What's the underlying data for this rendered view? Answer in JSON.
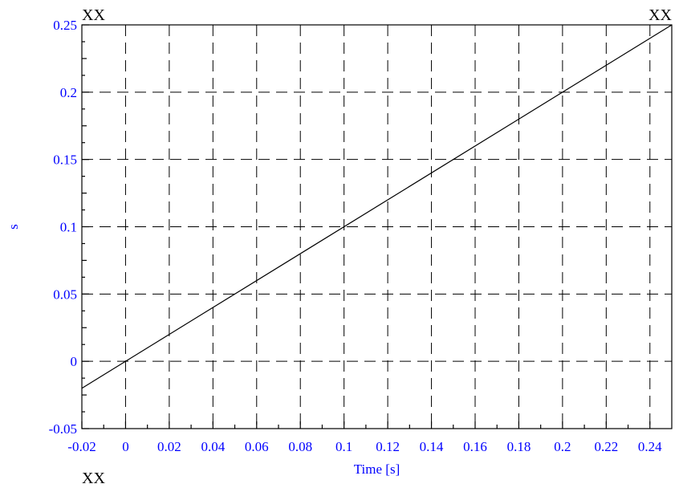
{
  "chart_data": {
    "type": "line",
    "xlabel": "Time [s]",
    "ylabel": "s",
    "xlim": [
      -0.02,
      0.25
    ],
    "ylim": [
      -0.05,
      0.25
    ],
    "x_ticks": [
      -0.02,
      0,
      0.02,
      0.04,
      0.06,
      0.08,
      0.1,
      0.12,
      0.14,
      0.16,
      0.18,
      0.2,
      0.22,
      0.24
    ],
    "x_tick_labels": [
      "-0.02",
      "0",
      "0.02",
      "0.04",
      "0.06",
      "0.08",
      "0.1",
      "0.12",
      "0.14",
      "0.16",
      "0.18",
      "0.2",
      "0.22",
      "0.24"
    ],
    "y_ticks": [
      -0.05,
      0,
      0.05,
      0.1,
      0.15,
      0.2,
      0.25
    ],
    "y_tick_labels": [
      "-0.05",
      "0",
      "0.05",
      "0.1",
      "0.15",
      "0.2",
      "0.25"
    ],
    "grid": true,
    "series": [
      {
        "x": [
          -0.02,
          0.25
        ],
        "y": [
          -0.02,
          0.25
        ]
      }
    ],
    "corner_labels": {
      "top_left": "XX",
      "top_right": "XX",
      "bottom_left": "XX"
    },
    "colors": {
      "tick_labels": "#0000ff",
      "axis_labels": "#0000ff",
      "line": "#000000",
      "grid": "#000000"
    }
  }
}
